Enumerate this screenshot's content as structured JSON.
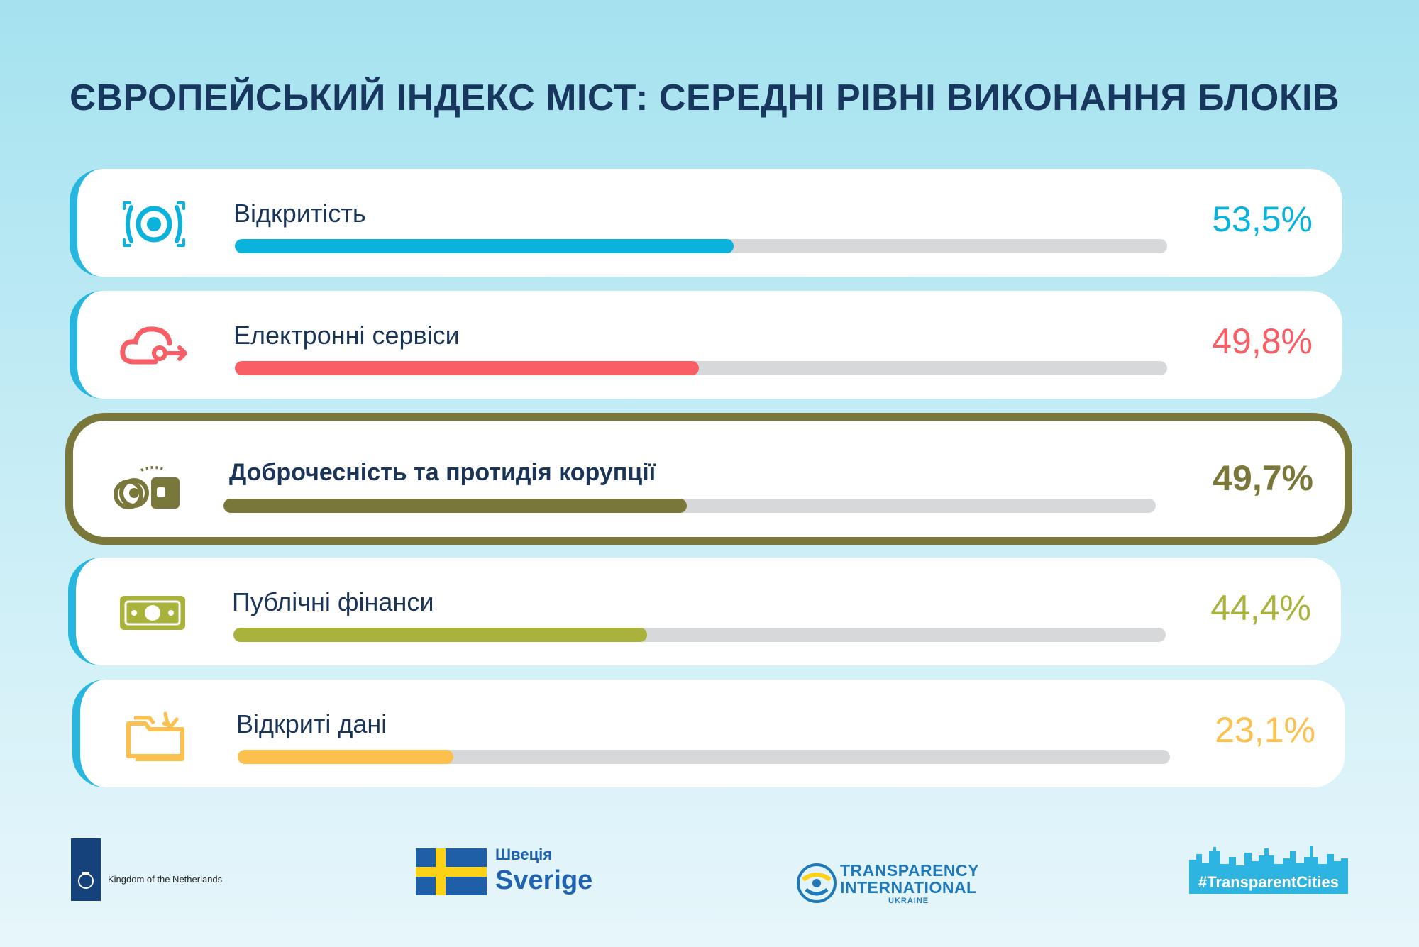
{
  "chart_data": {
    "type": "bar",
    "title": "ЄВРОПЕЙСЬКИЙ ІНДЕКС МІСТ: СЕРЕДНІ РІВНІ ВИКОНАННЯ БЛОКІВ",
    "orientation": "horizontal",
    "xlim": [
      0,
      100
    ],
    "unit": "%",
    "categories": [
      "Відкритість",
      "Електронні сервіси",
      "Доброчесність та протидія корупції",
      "Публічні фінанси",
      "Відкриті дані"
    ],
    "values": [
      53.5,
      49.8,
      49.7,
      44.4,
      23.1
    ],
    "value_labels": [
      "53,5%",
      "49,8%",
      "49,7%",
      "44,4%",
      "23,1%"
    ],
    "colors": [
      "#0ab2dc",
      "#f85e65",
      "#7a773a",
      "#a9b23a",
      "#fcc04e"
    ],
    "icons": [
      "eye-icon",
      "cloud-icon",
      "handcuffs-wallet-icon",
      "banknote-icon",
      "folder-icon"
    ],
    "highlighted": "Доброчесність та протидія корупції"
  },
  "logos": {
    "netherlands": "Kingdom of the Netherlands",
    "sweden_ua": "Швеція",
    "sweden_sv": "Sverige",
    "ti_line1": "TRANSPARENCY",
    "ti_line2": "INTERNATIONAL",
    "ti_line3": "UKRAINE",
    "transparent_cities": "#TransparentCities"
  }
}
